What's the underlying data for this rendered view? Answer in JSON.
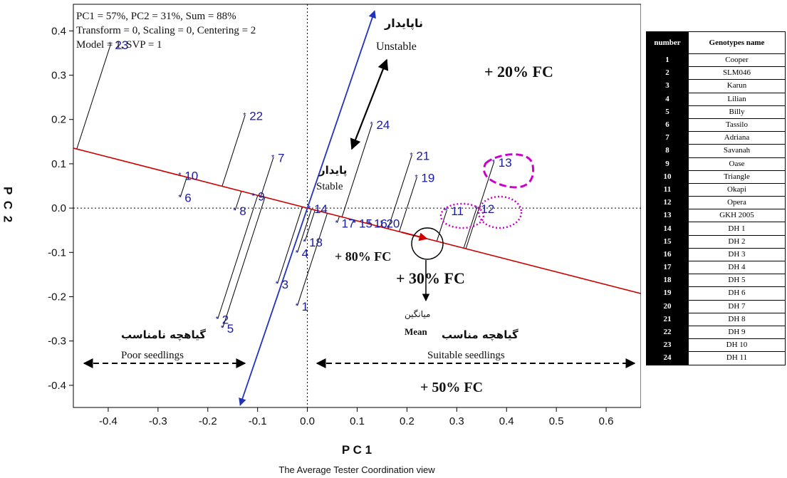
{
  "chart_data": {
    "type": "scatter",
    "title": "",
    "xlabel": "P C 1",
    "ylabel": "P C 2",
    "caption": "The Average Tester Coordination view",
    "xlim": [
      -0.47,
      0.67
    ],
    "ylim": [
      -0.45,
      0.46
    ],
    "xticks": [
      -0.4,
      -0.3,
      -0.2,
      -0.1,
      0.0,
      0.1,
      0.2,
      0.3,
      0.4,
      0.5,
      0.6
    ],
    "yticks": [
      -0.4,
      -0.3,
      -0.2,
      -0.1,
      0.0,
      0.1,
      0.2,
      0.3,
      0.4
    ],
    "xtick_labels": [
      "-0.4",
      "-0.3",
      "-0.2",
      "-0.1",
      "0.0",
      "0.1",
      "0.2",
      "0.3",
      "0.4",
      "0.5",
      "0.6"
    ],
    "ytick_labels": [
      "-0.4",
      "-0.3",
      "-0.2",
      "-0.1",
      "0.0",
      "0.1",
      "0.2",
      "0.3",
      "0.4"
    ],
    "info_lines": [
      "PC1 = 57%, PC2 = 31%, Sum = 88%",
      "Transform = 0, Scaling = 0, Centering = 2",
      "Model = 1, SVP = 1"
    ],
    "ata_line": {
      "slope": -0.288,
      "intercept": 0
    },
    "ata_axis": {
      "from": [
        -0.135,
        -0.445
      ],
      "to": [
        0.135,
        0.445
      ]
    },
    "mean_point": [
      0.24,
      -0.075
    ],
    "genotypes": [
      {
        "label": "1",
        "x": -0.02,
        "y": -0.22
      },
      {
        "label": "2",
        "x": -0.18,
        "y": -0.25
      },
      {
        "label": "3",
        "x": -0.06,
        "y": -0.17
      },
      {
        "label": "4",
        "x": -0.02,
        "y": -0.1
      },
      {
        "label": "5",
        "x": -0.17,
        "y": -0.27
      },
      {
        "label": "6",
        "x": -0.255,
        "y": 0.025
      },
      {
        "label": "7",
        "x": -0.068,
        "y": 0.115
      },
      {
        "label": "8",
        "x": -0.145,
        "y": -0.005
      },
      {
        "label": "9",
        "x": -0.108,
        "y": 0.028
      },
      {
        "label": "10",
        "x": -0.255,
        "y": 0.075
      },
      {
        "label": "11",
        "x": 0.28,
        "y": -0.005
      },
      {
        "label": "12",
        "x": 0.34,
        "y": 0.0
      },
      {
        "label": "13",
        "x": 0.375,
        "y": 0.105
      },
      {
        "label": "14",
        "x": 0.005,
        "y": 0.0
      },
      {
        "label": "15",
        "x": 0.095,
        "y": -0.033
      },
      {
        "label": "16",
        "x": 0.125,
        "y": -0.033
      },
      {
        "label": "17",
        "x": 0.06,
        "y": -0.033
      },
      {
        "label": "18",
        "x": -0.005,
        "y": -0.075
      },
      {
        "label": "19",
        "x": 0.22,
        "y": 0.07
      },
      {
        "label": "20",
        "x": 0.15,
        "y": -0.033
      },
      {
        "label": "21",
        "x": 0.21,
        "y": 0.12
      },
      {
        "label": "22",
        "x": -0.125,
        "y": 0.21
      },
      {
        "label": "23",
        "x": -0.395,
        "y": 0.37
      },
      {
        "label": "24",
        "x": 0.13,
        "y": 0.19
      }
    ],
    "region_labels": {
      "fc20": "+ 20% FC",
      "fc80": "+ 80% FC",
      "fc30": "+ 30% FC",
      "fc50": "+ 50% FC",
      "unstable_fa": "ناپایدار",
      "unstable_en": "Unstable",
      "stable_fa": "پایدار",
      "stable_en": "Stable",
      "mean_fa": "میانگین",
      "mean_en": "Mean",
      "poor_fa": "گیاهچه نامناسب",
      "poor_en": "Poor seedlings",
      "suitable_fa": "گیاهچه مناسب",
      "suitable_en": "Suitable seedlings"
    },
    "colors": {
      "genotype": "#1a1aa0",
      "ata_line": "#cc0000",
      "ata_axis": "#2233bb",
      "highlight": "#cc00cc",
      "projection": "#000000"
    }
  },
  "legend_table": {
    "header": [
      "number",
      "Genotypes name"
    ],
    "rows": [
      [
        "1",
        "Cooper"
      ],
      [
        "2",
        "SLM046"
      ],
      [
        "3",
        "Karun"
      ],
      [
        "4",
        "Lilian"
      ],
      [
        "5",
        "Billy"
      ],
      [
        "6",
        "Tassilo"
      ],
      [
        "7",
        "Adriana"
      ],
      [
        "8",
        "Savanah"
      ],
      [
        "9",
        "Oase"
      ],
      [
        "10",
        "Triangle"
      ],
      [
        "11",
        "Okapi"
      ],
      [
        "12",
        "Opera"
      ],
      [
        "13",
        "GKH 2005"
      ],
      [
        "14",
        "DH 1"
      ],
      [
        "15",
        "DH 2"
      ],
      [
        "16",
        "DH 3"
      ],
      [
        "17",
        "DH 4"
      ],
      [
        "18",
        "DH 5"
      ],
      [
        "19",
        "DH 6"
      ],
      [
        "20",
        "DH 7"
      ],
      [
        "21",
        "DH 8"
      ],
      [
        "22",
        "DH 9"
      ],
      [
        "23",
        "DH 10"
      ],
      [
        "24",
        "DH 11"
      ]
    ]
  }
}
